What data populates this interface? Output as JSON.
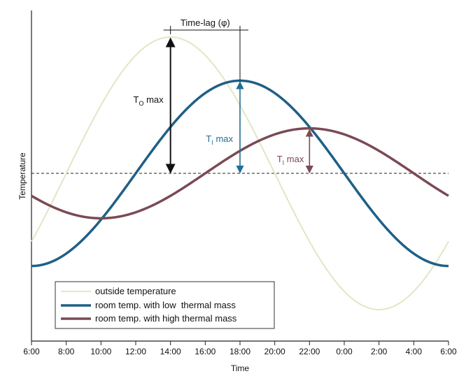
{
  "chart_data": {
    "type": "line",
    "title": "",
    "xlabel": "Time",
    "ylabel": "Temperature",
    "x_hours": [
      6,
      8,
      10,
      12,
      14,
      16,
      18,
      20,
      22,
      24,
      26,
      28,
      30
    ],
    "x_tick_labels": [
      "6:00",
      "8:00",
      "10:00",
      "12:00",
      "14:00",
      "16:00",
      "18:00",
      "20:00",
      "22:00",
      "0:00",
      "2:00",
      "4:00",
      "6:00"
    ],
    "xlim": [
      6,
      30
    ],
    "y_units": "relative (0 = mean level)",
    "ylim": [
      -1.25,
      1.25
    ],
    "mean_level": 0,
    "grid": false,
    "legend_position": "bottom-left",
    "series": [
      {
        "name": "outside temperature",
        "color": "#dfe8c5",
        "peak_hour": 14,
        "amplitude": 1.0,
        "hours": [
          6,
          8,
          10,
          12,
          14,
          16,
          18,
          20,
          22,
          24,
          26,
          28,
          30
        ],
        "values": [
          -0.5,
          0.0,
          0.5,
          0.87,
          1.0,
          0.87,
          0.5,
          0.0,
          -0.5,
          -0.87,
          -1.0,
          -0.87,
          -0.5
        ]
      },
      {
        "name": "room temp. with low  thermal mass",
        "color": "#1f5f87",
        "peak_hour": 18,
        "amplitude": 0.68,
        "hours": [
          6,
          8,
          10,
          12,
          14,
          16,
          18,
          20,
          22,
          24,
          26,
          28,
          30
        ],
        "values": [
          -0.68,
          -0.59,
          -0.34,
          0.0,
          0.34,
          0.59,
          0.68,
          0.59,
          0.34,
          0.0,
          -0.34,
          -0.59,
          -0.68
        ]
      },
      {
        "name": "room temp. with high thermal mass",
        "color": "#7a4a55",
        "peak_hour": 22,
        "amplitude": 0.33,
        "hours": [
          6,
          8,
          10,
          12,
          14,
          16,
          18,
          20,
          22,
          24,
          26,
          28,
          30
        ],
        "values": [
          -0.17,
          -0.29,
          -0.33,
          -0.29,
          -0.17,
          0.0,
          0.17,
          0.29,
          0.33,
          0.29,
          0.17,
          0.0,
          -0.17
        ]
      }
    ],
    "annotations": {
      "time_lag": {
        "label": "Time-lag (φ)",
        "from_hour": 14,
        "to_hour": 18
      },
      "amplitude_markers": [
        {
          "main": "T",
          "sub": "O",
          "suffix": " max",
          "hour": 14,
          "series_index": 0,
          "color": "#111111"
        },
        {
          "main": "T",
          "sub": "I",
          "suffix": " max",
          "hour": 18,
          "series_index": 1,
          "color": "#1f6e94"
        },
        {
          "main": "T",
          "sub": "I",
          "suffix": " max",
          "hour": 22,
          "series_index": 2,
          "color": "#7a4a55"
        }
      ]
    }
  }
}
